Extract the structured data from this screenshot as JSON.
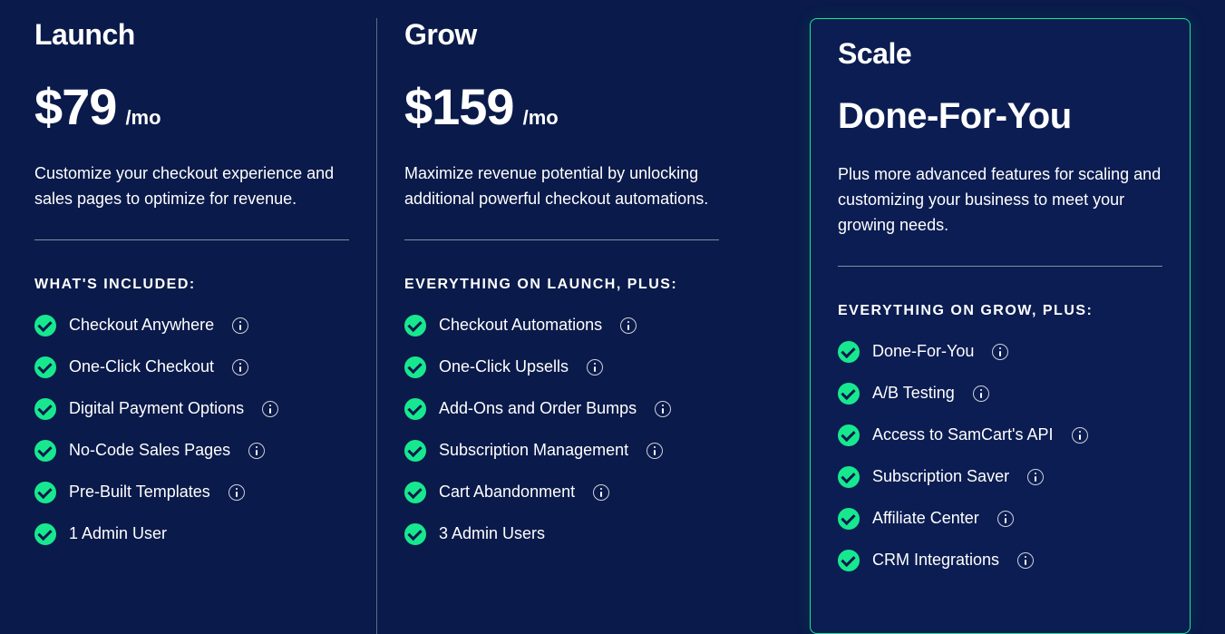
{
  "colors": {
    "background": "#0a1a4a",
    "accent_green": "#17e88f",
    "scale_card_bg": "#0b1d52",
    "text": "#ffffff",
    "divider": "rgba(255,255,255,0.35)"
  },
  "plans": {
    "launch": {
      "title": "Launch",
      "price": "$79",
      "per": "/mo",
      "description": "Customize your checkout experience and sales pages to optimize for revenue.",
      "section_label": "WHAT'S INCLUDED:",
      "features": [
        {
          "label": "Checkout Anywhere",
          "info": true
        },
        {
          "label": "One-Click Checkout",
          "info": true
        },
        {
          "label": "Digital Payment Options",
          "info": true
        },
        {
          "label": "No-Code Sales Pages",
          "info": true
        },
        {
          "label": "Pre-Built Templates",
          "info": true
        },
        {
          "label": "1 Admin User",
          "info": false
        }
      ]
    },
    "grow": {
      "title": "Grow",
      "price": "$159",
      "per": "/mo",
      "description": "Maximize revenue potential by unlocking additional powerful checkout automations.",
      "section_label": "EVERYTHING ON LAUNCH, PLUS:",
      "features": [
        {
          "label": "Checkout Automations",
          "info": true
        },
        {
          "label": "One-Click Upsells",
          "info": true
        },
        {
          "label": "Add-Ons and Order Bumps",
          "info": true
        },
        {
          "label": "Subscription Management",
          "info": true
        },
        {
          "label": "Cart Abandonment",
          "info": true
        },
        {
          "label": "3 Admin Users",
          "info": false
        }
      ]
    },
    "scale": {
      "title": "Scale",
      "heading": "Done-For-You",
      "description": "Plus more advanced features for scaling and customizing your business to meet your growing needs.",
      "section_label": "EVERYTHING ON GROW, PLUS:",
      "features": [
        {
          "label": "Done-For-You",
          "info": true
        },
        {
          "label": "A/B Testing",
          "info": true
        },
        {
          "label": "Access to SamCart's API",
          "info": true
        },
        {
          "label": "Subscription Saver",
          "info": true
        },
        {
          "label": "Affiliate Center",
          "info": true
        },
        {
          "label": "CRM Integrations",
          "info": true
        }
      ]
    }
  }
}
